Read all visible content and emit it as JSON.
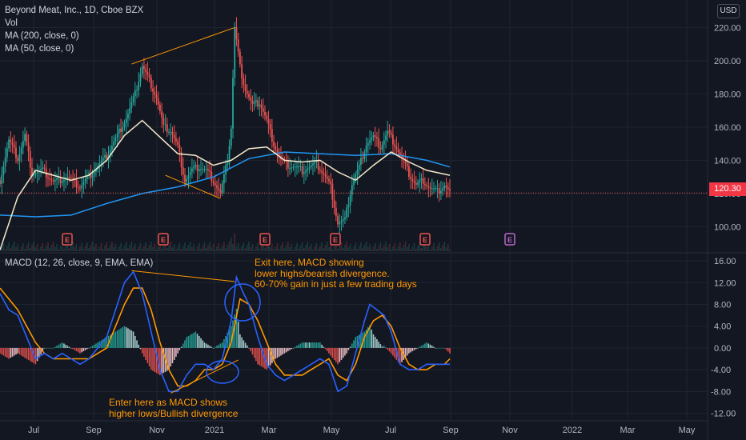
{
  "chart_data": [
    {
      "type": "candlestick",
      "title": "Beyond Meat, Inc., 1D, Cboe BZX",
      "legend": [
        "Vol",
        "MA (200, close, 0)",
        "MA (50, close, 0)"
      ],
      "currency": "USD",
      "last_price": "120.30",
      "ylim": [
        92,
        226
      ],
      "yticks": [
        "220.00",
        "200.00",
        "180.00",
        "160.00",
        "140.00",
        "120.00",
        "100.00"
      ],
      "xticks": [
        "Jul",
        "Sep",
        "Nov",
        "2021",
        "Mar",
        "May",
        "Jul",
        "Sep",
        "Nov",
        "2022",
        "Mar",
        "May"
      ],
      "earnings_markers": [
        "E",
        "E",
        "E",
        "E",
        "E",
        "E"
      ],
      "price_points": [
        [
          0,
          128
        ],
        [
          5,
          152
        ],
        [
          10,
          141
        ],
        [
          14,
          155
        ],
        [
          18,
          132
        ],
        [
          24,
          134
        ],
        [
          30,
          127
        ],
        [
          38,
          130
        ],
        [
          45,
          124
        ],
        [
          52,
          133
        ],
        [
          59,
          141
        ],
        [
          66,
          155
        ],
        [
          72,
          168
        ],
        [
          76,
          180
        ],
        [
          80,
          197
        ],
        [
          84,
          188
        ],
        [
          88,
          178
        ],
        [
          92,
          160
        ],
        [
          96,
          158
        ],
        [
          100,
          148
        ],
        [
          104,
          128
        ],
        [
          108,
          134
        ],
        [
          112,
          136
        ],
        [
          116,
          134
        ],
        [
          120,
          128
        ],
        [
          124,
          120
        ],
        [
          128,
          140
        ],
        [
          130,
          160
        ],
        [
          132,
          220
        ],
        [
          135,
          196
        ],
        [
          138,
          183
        ],
        [
          142,
          173
        ],
        [
          146,
          175
        ],
        [
          150,
          164
        ],
        [
          154,
          150
        ],
        [
          158,
          140
        ],
        [
          162,
          137
        ],
        [
          166,
          136
        ],
        [
          170,
          134
        ],
        [
          174,
          136
        ],
        [
          178,
          138
        ],
        [
          182,
          132
        ],
        [
          186,
          124
        ],
        [
          190,
          102
        ],
        [
          194,
          104
        ],
        [
          198,
          126
        ],
        [
          202,
          136
        ],
        [
          206,
          150
        ],
        [
          210,
          154
        ],
        [
          214,
          148
        ],
        [
          218,
          157
        ],
        [
          222,
          150
        ],
        [
          226,
          141
        ],
        [
          230,
          132
        ],
        [
          234,
          125
        ],
        [
          238,
          128
        ],
        [
          242,
          123
        ],
        [
          246,
          121
        ],
        [
          250,
          125
        ],
        [
          253,
          120.3
        ]
      ],
      "ma200": [
        [
          0,
          107
        ],
        [
          20,
          106
        ],
        [
          40,
          107
        ],
        [
          60,
          114
        ],
        [
          80,
          120
        ],
        [
          100,
          124
        ],
        [
          120,
          130
        ],
        [
          140,
          141
        ],
        [
          160,
          145
        ],
        [
          180,
          144
        ],
        [
          200,
          143
        ],
        [
          220,
          144
        ],
        [
          240,
          140
        ],
        [
          253,
          136
        ]
      ],
      "ma50": [
        [
          0,
          86
        ],
        [
          10,
          118
        ],
        [
          20,
          134
        ],
        [
          30,
          131
        ],
        [
          40,
          128
        ],
        [
          50,
          131
        ],
        [
          60,
          140
        ],
        [
          70,
          155
        ],
        [
          80,
          164
        ],
        [
          90,
          154
        ],
        [
          100,
          144
        ],
        [
          110,
          143
        ],
        [
          120,
          137
        ],
        [
          130,
          140
        ],
        [
          140,
          147
        ],
        [
          150,
          148
        ],
        [
          160,
          140
        ],
        [
          170,
          139
        ],
        [
          180,
          140
        ],
        [
          190,
          133
        ],
        [
          200,
          128
        ],
        [
          210,
          137
        ],
        [
          220,
          145
        ],
        [
          230,
          139
        ],
        [
          240,
          134
        ],
        [
          253,
          131
        ]
      ],
      "annotations": [
        "bearish divergence trendline",
        "bullish divergence trendline"
      ]
    },
    {
      "type": "macd",
      "title": "MACD (12, 26, close, 9, EMA, EMA)",
      "ylim": [
        -12.8,
        16.6
      ],
      "yticks": [
        "16.00",
        "12.00",
        "8.00",
        "4.00",
        "0.00",
        "-4.00",
        "-8.00",
        "-12.00"
      ],
      "macd": [
        [
          0,
          10
        ],
        [
          5,
          7
        ],
        [
          10,
          6
        ],
        [
          15,
          2
        ],
        [
          20,
          -2
        ],
        [
          25,
          -1
        ],
        [
          30,
          -2
        ],
        [
          35,
          -1
        ],
        [
          40,
          -2
        ],
        [
          45,
          -3
        ],
        [
          50,
          -2
        ],
        [
          55,
          0
        ],
        [
          60,
          2
        ],
        [
          65,
          7
        ],
        [
          70,
          12
        ],
        [
          75,
          14
        ],
        [
          80,
          10
        ],
        [
          85,
          3
        ],
        [
          90,
          -4
        ],
        [
          95,
          -8
        ],
        [
          100,
          -8
        ],
        [
          105,
          -5
        ],
        [
          110,
          -3
        ],
        [
          115,
          -3
        ],
        [
          120,
          -4
        ],
        [
          125,
          -2
        ],
        [
          130,
          5
        ],
        [
          133,
          13
        ],
        [
          137,
          10
        ],
        [
          140,
          8
        ],
        [
          145,
          2
        ],
        [
          150,
          -3
        ],
        [
          155,
          -5
        ],
        [
          160,
          -6
        ],
        [
          165,
          -5
        ],
        [
          170,
          -4
        ],
        [
          175,
          -3
        ],
        [
          180,
          -2
        ],
        [
          185,
          -3
        ],
        [
          190,
          -8
        ],
        [
          195,
          -7
        ],
        [
          200,
          -1
        ],
        [
          205,
          5
        ],
        [
          208,
          8
        ],
        [
          212,
          7
        ],
        [
          216,
          6
        ],
        [
          220,
          3
        ],
        [
          225,
          -3
        ],
        [
          230,
          -4
        ],
        [
          235,
          -4
        ],
        [
          240,
          -3
        ],
        [
          245,
          -3
        ],
        [
          250,
          -3
        ],
        [
          253,
          -3
        ]
      ],
      "signal": [
        [
          0,
          11
        ],
        [
          5,
          9
        ],
        [
          10,
          7
        ],
        [
          15,
          4
        ],
        [
          20,
          1
        ],
        [
          25,
          -1
        ],
        [
          30,
          -2
        ],
        [
          35,
          -2
        ],
        [
          40,
          -2
        ],
        [
          45,
          -2
        ],
        [
          50,
          -2
        ],
        [
          55,
          -1
        ],
        [
          60,
          0
        ],
        [
          65,
          4
        ],
        [
          70,
          8
        ],
        [
          75,
          11
        ],
        [
          80,
          11
        ],
        [
          85,
          7
        ],
        [
          90,
          1
        ],
        [
          95,
          -4
        ],
        [
          100,
          -7
        ],
        [
          105,
          -7
        ],
        [
          110,
          -6
        ],
        [
          115,
          -4
        ],
        [
          120,
          -4
        ],
        [
          125,
          -3
        ],
        [
          130,
          1
        ],
        [
          135,
          9
        ],
        [
          140,
          8
        ],
        [
          145,
          5
        ],
        [
          150,
          1
        ],
        [
          155,
          -3
        ],
        [
          160,
          -5
        ],
        [
          165,
          -5
        ],
        [
          170,
          -5
        ],
        [
          175,
          -4
        ],
        [
          180,
          -3
        ],
        [
          185,
          -2
        ],
        [
          190,
          -5
        ],
        [
          195,
          -6
        ],
        [
          200,
          -3
        ],
        [
          205,
          2
        ],
        [
          210,
          5
        ],
        [
          215,
          6
        ],
        [
          220,
          4
        ],
        [
          225,
          0
        ],
        [
          230,
          -3
        ],
        [
          235,
          -4
        ],
        [
          240,
          -4
        ],
        [
          245,
          -3
        ],
        [
          250,
          -3
        ],
        [
          253,
          -2
        ]
      ],
      "notes": [
        "Exit here, MACD showing\nlower highs/bearish divergence.\n60-70% gain in just a few trading days",
        "Enter here as MACD shows\nhigher lows/Bullish divergence"
      ]
    }
  ],
  "colors": {
    "background": "#131722",
    "up": "#26a69a",
    "down": "#ef5350",
    "ma200": "#2196f3",
    "ma50": "#f5e9c9",
    "annotation": "#ff9800",
    "macd": "#2962ff",
    "signal": "#ff9800",
    "grid": "#1f2430"
  }
}
